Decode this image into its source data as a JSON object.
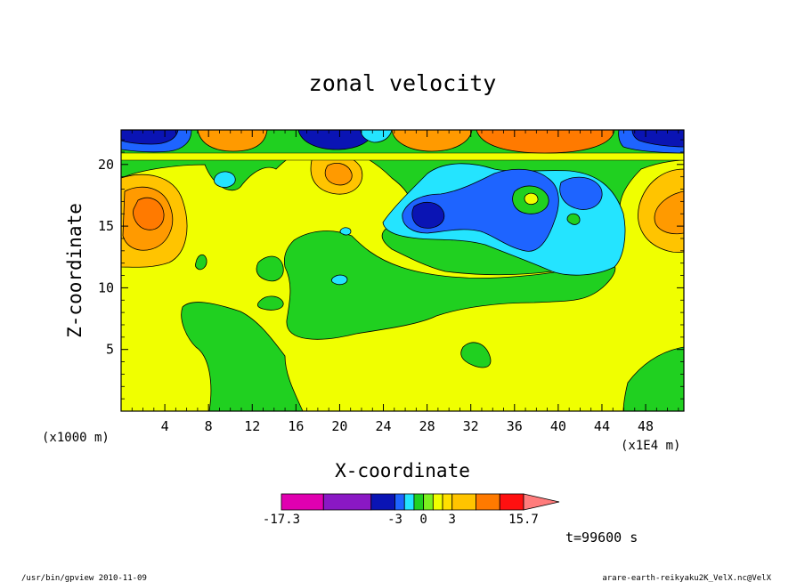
{
  "chart_data": {
    "type": "heatmap",
    "title": "zonal velocity",
    "xlabel": "X-coordinate",
    "ylabel": "Z-coordinate",
    "x_unit_label": "(x1E4 m)",
    "y_unit_label": "(x1000 m)",
    "xlim": [
      0,
      51.5
    ],
    "ylim": [
      0,
      22.8
    ],
    "x_ticks": [
      4,
      8,
      12,
      16,
      20,
      24,
      28,
      32,
      36,
      40,
      44,
      48
    ],
    "y_ticks": [
      5,
      10,
      15,
      20
    ],
    "colorbar": {
      "min_label": "-17.3",
      "max_label": "15.7",
      "tick_labels": [
        "-3",
        "0",
        "3"
      ],
      "levels": [
        -17.3,
        -12,
        -6,
        -3,
        -2,
        -1,
        0,
        1,
        2,
        3,
        6,
        9,
        12,
        15.7
      ],
      "colors": [
        "#e000b0",
        "#8a18c4",
        "#0a14b4",
        "#1e64ff",
        "#24e4ff",
        "#20d020",
        "#7cf020",
        "#f0ff00",
        "#ffe000",
        "#ffc400",
        "#ff7a00",
        "#ff1010",
        "#ff7c7c",
        "#ffb2b2"
      ]
    },
    "colors": {
      "background_green": "#20d020",
      "yellow": "#f0ff00",
      "light_orange": "#ffc400",
      "orange": "#ff7a00",
      "cyan": "#24e4ff",
      "blue": "#1e64ff",
      "dark_blue": "#0a14b4"
    }
  },
  "time_label": "t=99600 s",
  "footer": {
    "left": "/usr/bin/gpview  2010-11-09",
    "right": "arare-earth-reikyaku2K_VelX.nc@VelX"
  }
}
